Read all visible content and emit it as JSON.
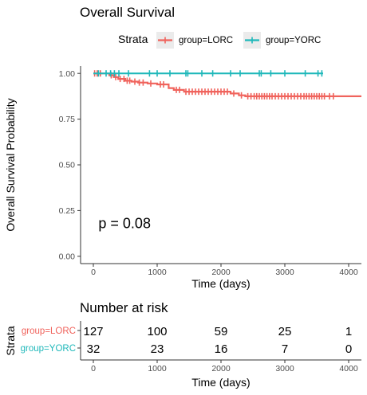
{
  "colors": {
    "lorc": "#F0635C",
    "yorc": "#1FB8BA",
    "legend_bg": "#EBEBEB",
    "axis": "#333333",
    "tick_text": "#4D4D4D"
  },
  "chart_data": [
    {
      "type": "line",
      "chart": "kaplan-meier",
      "title": "Overall Survival",
      "xlabel": "Time (days)",
      "ylabel": "Overall Survival Probability",
      "xlim": [
        -200,
        4200
      ],
      "ylim": [
        -0.04,
        1.04
      ],
      "xticks": [
        0,
        1000,
        2000,
        3000,
        4000
      ],
      "yticks": [
        0.0,
        0.25,
        0.5,
        0.75,
        1.0
      ],
      "ytick_labels": [
        "0.00",
        "0.25",
        "0.50",
        "0.75",
        "1.00"
      ],
      "grid": false,
      "legend": {
        "title": "Strata",
        "position": "top",
        "entries": [
          "group=LORC",
          "group=YORC"
        ]
      },
      "annotation": "p = 0.08",
      "annotation_pos": [
        80,
        0.18
      ],
      "series": [
        {
          "name": "group=LORC",
          "color": "#F0635C",
          "steps": [
            [
              0,
              1.0
            ],
            [
              250,
              0.99
            ],
            [
              320,
              0.98
            ],
            [
              390,
              0.97
            ],
            [
              500,
              0.96
            ],
            [
              600,
              0.955
            ],
            [
              700,
              0.95
            ],
            [
              850,
              0.945
            ],
            [
              1000,
              0.94
            ],
            [
              1180,
              0.92
            ],
            [
              1260,
              0.91
            ],
            [
              1420,
              0.9
            ],
            [
              2150,
              0.89
            ],
            [
              2280,
              0.88
            ],
            [
              2380,
              0.875
            ],
            [
              4200,
              0.875
            ]
          ],
          "censored": [
            [
              20,
              1.0
            ],
            [
              60,
              1.0
            ],
            [
              110,
              1.0
            ],
            [
              280,
              0.99
            ],
            [
              350,
              0.98
            ],
            [
              420,
              0.97
            ],
            [
              480,
              0.97
            ],
            [
              530,
              0.96
            ],
            [
              570,
              0.96
            ],
            [
              650,
              0.955
            ],
            [
              720,
              0.95
            ],
            [
              780,
              0.95
            ],
            [
              900,
              0.945
            ],
            [
              1050,
              0.94
            ],
            [
              1100,
              0.94
            ],
            [
              1300,
              0.91
            ],
            [
              1350,
              0.91
            ],
            [
              1450,
              0.9
            ],
            [
              1500,
              0.9
            ],
            [
              1550,
              0.9
            ],
            [
              1600,
              0.9
            ],
            [
              1650,
              0.9
            ],
            [
              1700,
              0.9
            ],
            [
              1750,
              0.9
            ],
            [
              1800,
              0.9
            ],
            [
              1850,
              0.9
            ],
            [
              1900,
              0.9
            ],
            [
              1950,
              0.9
            ],
            [
              2000,
              0.9
            ],
            [
              2050,
              0.9
            ],
            [
              2100,
              0.9
            ],
            [
              2200,
              0.89
            ],
            [
              2320,
              0.88
            ],
            [
              2420,
              0.875
            ],
            [
              2470,
              0.875
            ],
            [
              2520,
              0.875
            ],
            [
              2560,
              0.875
            ],
            [
              2600,
              0.875
            ],
            [
              2640,
              0.875
            ],
            [
              2680,
              0.875
            ],
            [
              2720,
              0.875
            ],
            [
              2760,
              0.875
            ],
            [
              2800,
              0.875
            ],
            [
              2850,
              0.875
            ],
            [
              2900,
              0.875
            ],
            [
              2950,
              0.875
            ],
            [
              3000,
              0.875
            ],
            [
              3050,
              0.875
            ],
            [
              3100,
              0.875
            ],
            [
              3150,
              0.875
            ],
            [
              3200,
              0.875
            ],
            [
              3250,
              0.875
            ],
            [
              3300,
              0.875
            ],
            [
              3340,
              0.875
            ],
            [
              3380,
              0.875
            ],
            [
              3420,
              0.875
            ],
            [
              3460,
              0.875
            ],
            [
              3500,
              0.875
            ],
            [
              3540,
              0.875
            ],
            [
              3580,
              0.875
            ],
            [
              3620,
              0.875
            ],
            [
              3700,
              0.875
            ],
            [
              3760,
              0.875
            ]
          ]
        },
        {
          "name": "group=YORC",
          "color": "#1FB8BA",
          "steps": [
            [
              0,
              1.0
            ],
            [
              3600,
              1.0
            ]
          ],
          "censored": [
            [
              80,
              1.0
            ],
            [
              200,
              1.0
            ],
            [
              270,
              1.0
            ],
            [
              330,
              1.0
            ],
            [
              400,
              1.0
            ],
            [
              550,
              1.0
            ],
            [
              880,
              1.0
            ],
            [
              1000,
              1.0
            ],
            [
              1200,
              1.0
            ],
            [
              1450,
              1.0
            ],
            [
              1480,
              1.0
            ],
            [
              1700,
              1.0
            ],
            [
              1870,
              1.0
            ],
            [
              2150,
              1.0
            ],
            [
              2300,
              1.0
            ],
            [
              2600,
              1.0
            ],
            [
              2630,
              1.0
            ],
            [
              2780,
              1.0
            ],
            [
              3000,
              1.0
            ],
            [
              3320,
              1.0
            ],
            [
              3520,
              1.0
            ],
            [
              3580,
              1.0
            ]
          ]
        }
      ]
    },
    {
      "type": "table",
      "title": "Number at risk",
      "xlabel": "Time (days)",
      "ylabel": "Strata",
      "xlim": [
        -200,
        4200
      ],
      "xticks": [
        0,
        1000,
        2000,
        3000,
        4000
      ],
      "rows": [
        {
          "name": "group=LORC",
          "color": "#F0635C",
          "values": [
            "127",
            "100",
            "59",
            "25",
            "1"
          ]
        },
        {
          "name": "group=YORC",
          "color": "#1FB8BA",
          "values": [
            "32",
            "23",
            "16",
            "7",
            "0"
          ]
        }
      ]
    }
  ]
}
